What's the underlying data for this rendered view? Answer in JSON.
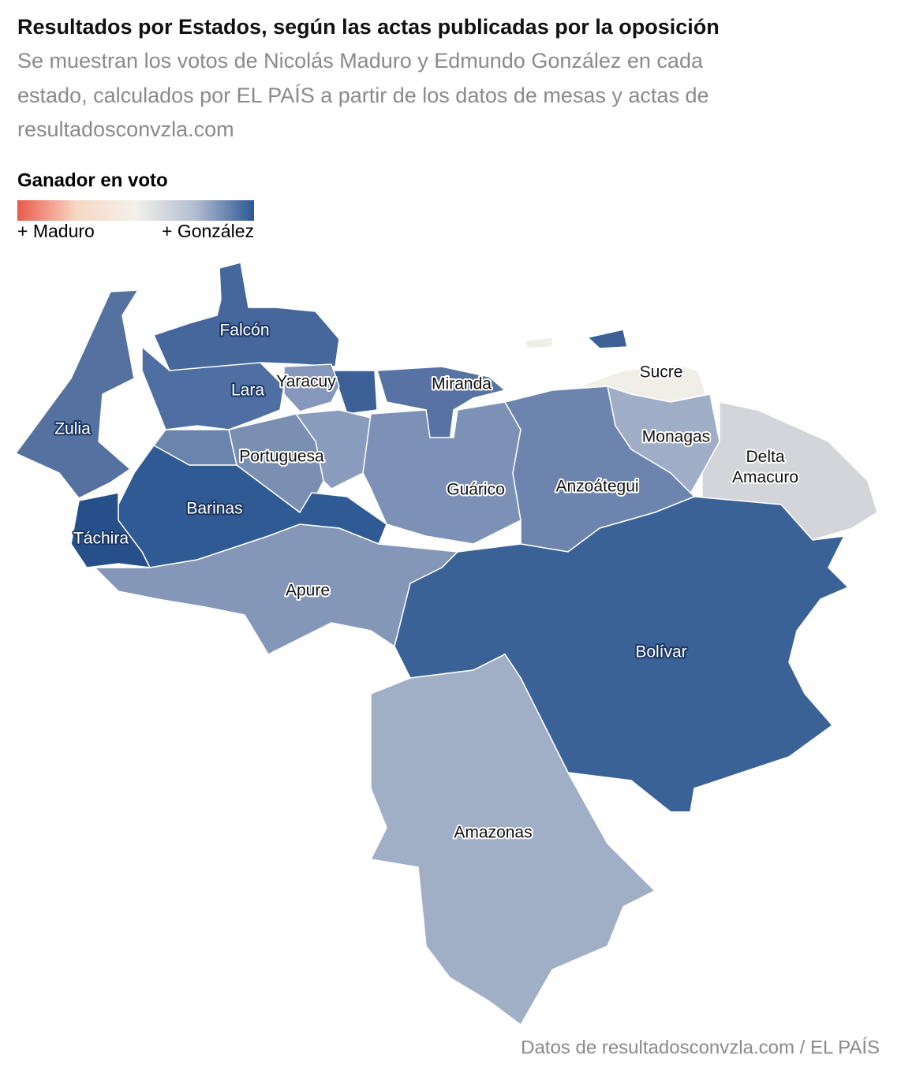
{
  "header": {
    "title": "Resultados por Estados, según las actas publicadas por la oposición",
    "subtitle": [
      "Se muestran los votos de Nicolás Maduro y Edmundo González en cada",
      "estado, calculados por EL PAÍS a partir de los datos de mesas y actas de",
      "resultadosconvzla.com"
    ]
  },
  "legend": {
    "title": "Ganador en voto",
    "labels": [
      "+ Maduro",
      "+ González"
    ],
    "colors": [
      "#ea5a4c",
      "#f6d8c4",
      "#f3f1ea",
      "#b3bdd2",
      "#2d5893"
    ]
  },
  "map": {
    "regions": [
      {
        "name": "Falcón",
        "color": "#45679c"
      },
      {
        "name": "Lara",
        "color": "#4f6fa2"
      },
      {
        "name": "Yaracuy",
        "color": "#8597ba"
      },
      {
        "name": "Miranda",
        "color": "#5873a3"
      },
      {
        "name": "Sucre",
        "color": "#efeee7"
      },
      {
        "name": "Zulia",
        "color": "#5571a0"
      },
      {
        "name": "Monagas",
        "color": "#a0adc7"
      },
      {
        "name": "Delta Amacuro",
        "color": "#d3d5da"
      },
      {
        "name": "Portuguesa",
        "color": "#7b8fb3"
      },
      {
        "name": "Guárico",
        "color": "#7c91b5"
      },
      {
        "name": "Anzoátegui",
        "color": "#6d85ae"
      },
      {
        "name": "Barinas",
        "color": "#2f5a94"
      },
      {
        "name": "Táchira",
        "color": "#27508b"
      },
      {
        "name": "Apure",
        "color": "#8497b9"
      },
      {
        "name": "Bolívar",
        "color": "#3b6296"
      },
      {
        "name": "Amazonas",
        "color": "#a0aec6"
      }
    ]
  },
  "source": "Datos de resultadosconvzla.com / EL PAÍS"
}
